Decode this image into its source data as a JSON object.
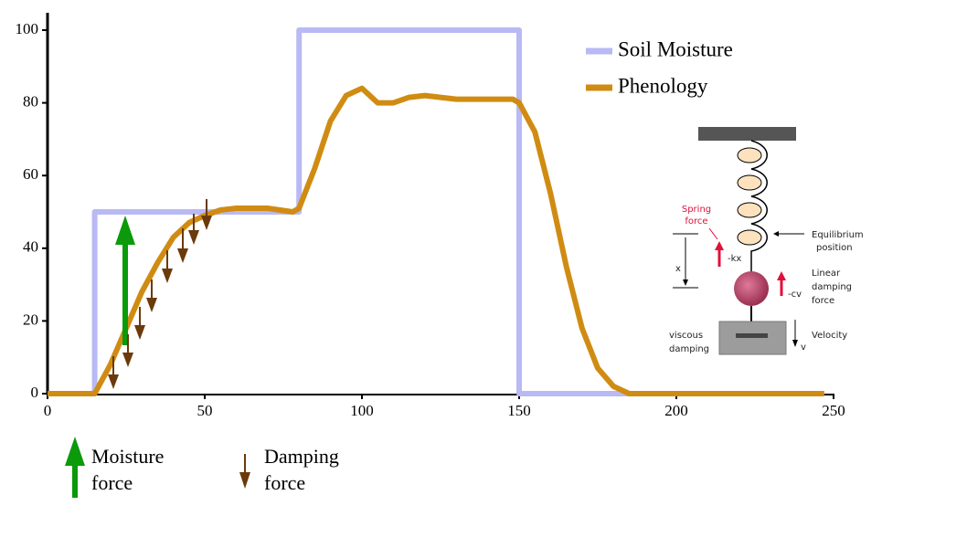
{
  "chart_data": {
    "type": "line",
    "xlim": [
      0,
      250
    ],
    "ylim": [
      0,
      100
    ],
    "xticks": [
      0,
      50,
      100,
      150,
      200,
      250
    ],
    "yticks": [
      0,
      20,
      40,
      60,
      80,
      100
    ],
    "legend": "upper right",
    "series": [
      {
        "name": "Soil Moisture",
        "color": "#b9b9f4",
        "x": [
          0,
          15,
          15,
          80,
          80,
          150,
          150,
          247
        ],
        "values": [
          0,
          0,
          50,
          50,
          100,
          100,
          0,
          0
        ]
      },
      {
        "name": "Phenology",
        "color": "#d08c12",
        "x": [
          0,
          15,
          20,
          25,
          30,
          35,
          40,
          45,
          50,
          55,
          60,
          70,
          78,
          80,
          85,
          90,
          95,
          100,
          105,
          110,
          115,
          120,
          130,
          140,
          148,
          150,
          155,
          160,
          165,
          170,
          175,
          180,
          185,
          200,
          247
        ],
        "values": [
          0,
          0,
          8,
          18,
          28,
          36,
          43,
          47,
          49,
          50.5,
          51,
          51,
          50,
          51,
          62,
          75,
          82,
          84,
          80,
          80,
          81.5,
          82,
          81,
          81,
          81,
          80,
          72,
          55,
          35,
          18,
          7,
          2,
          0,
          0,
          0
        ]
      }
    ],
    "annotations": {
      "moisture_force": [
        "Moisture",
        "force"
      ],
      "damping_force": [
        "Damping",
        "force"
      ],
      "spring_force": [
        "Spring",
        "force"
      ],
      "kx": "-kx",
      "equilibrium": [
        "Equilibrium",
        "position"
      ],
      "x_label": "x",
      "linear_damping": [
        "Linear",
        "damping",
        "force"
      ],
      "cv": "-cv",
      "viscous_damping": [
        "viscous",
        "damping"
      ],
      "velocity": "Velocity",
      "v_label": "v"
    }
  }
}
